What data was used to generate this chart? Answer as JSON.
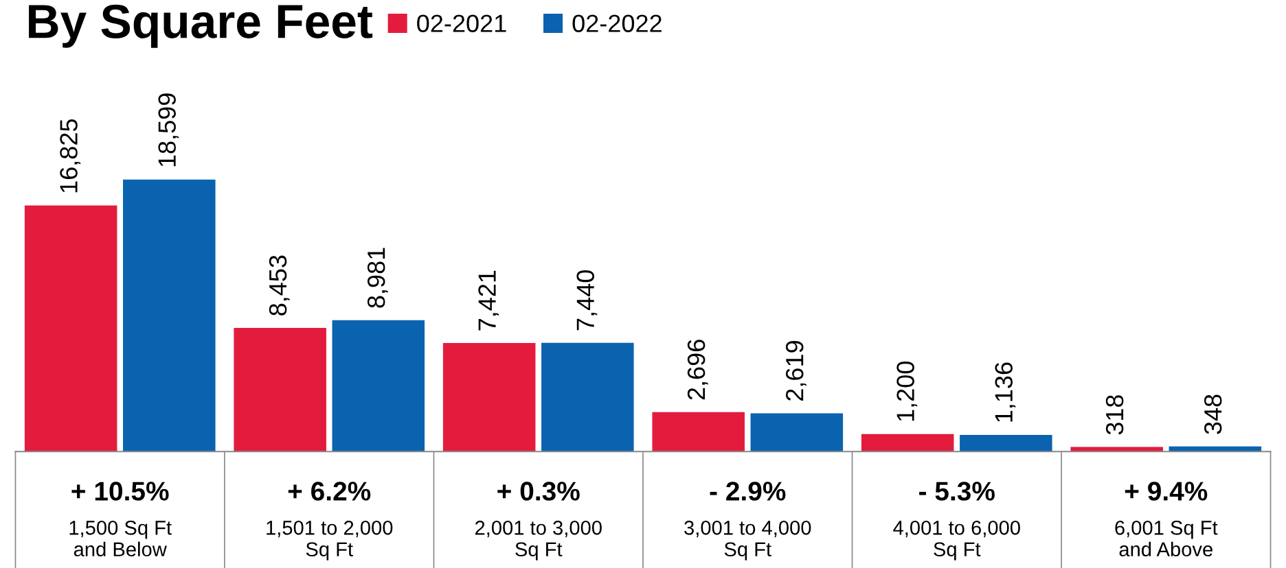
{
  "chart_data": {
    "type": "bar",
    "title": "By Square Feet",
    "categories": [
      "1,500 Sq Ft\nand Below",
      "1,501 to 2,000\nSq Ft",
      "2,001 to 3,000\nSq Ft",
      "3,001 to 4,000\nSq Ft",
      "4,001 to 6,000\nSq Ft",
      "6,001 Sq Ft\nand Above"
    ],
    "series": [
      {
        "name": "02-2021",
        "color": "#e31c3d",
        "values": [
          16825,
          8453,
          7421,
          2696,
          1200,
          318
        ],
        "value_labels": [
          "16,825",
          "8,453",
          "7,421",
          "2,696",
          "1,200",
          "318"
        ]
      },
      {
        "name": "02-2022",
        "color": "#0b63b0",
        "values": [
          18599,
          8981,
          7440,
          2619,
          1136,
          348
        ],
        "value_labels": [
          "18,599",
          "8,981",
          "7,440",
          "2,619",
          "1,136",
          "348"
        ]
      }
    ],
    "annotations": [
      "+ 10.5%",
      "+ 6.2%",
      "+ 0.3%",
      "- 2.9%",
      "- 5.3%",
      "+ 9.4%"
    ],
    "legend": "top",
    "grid": false,
    "tick_labels": "x"
  }
}
